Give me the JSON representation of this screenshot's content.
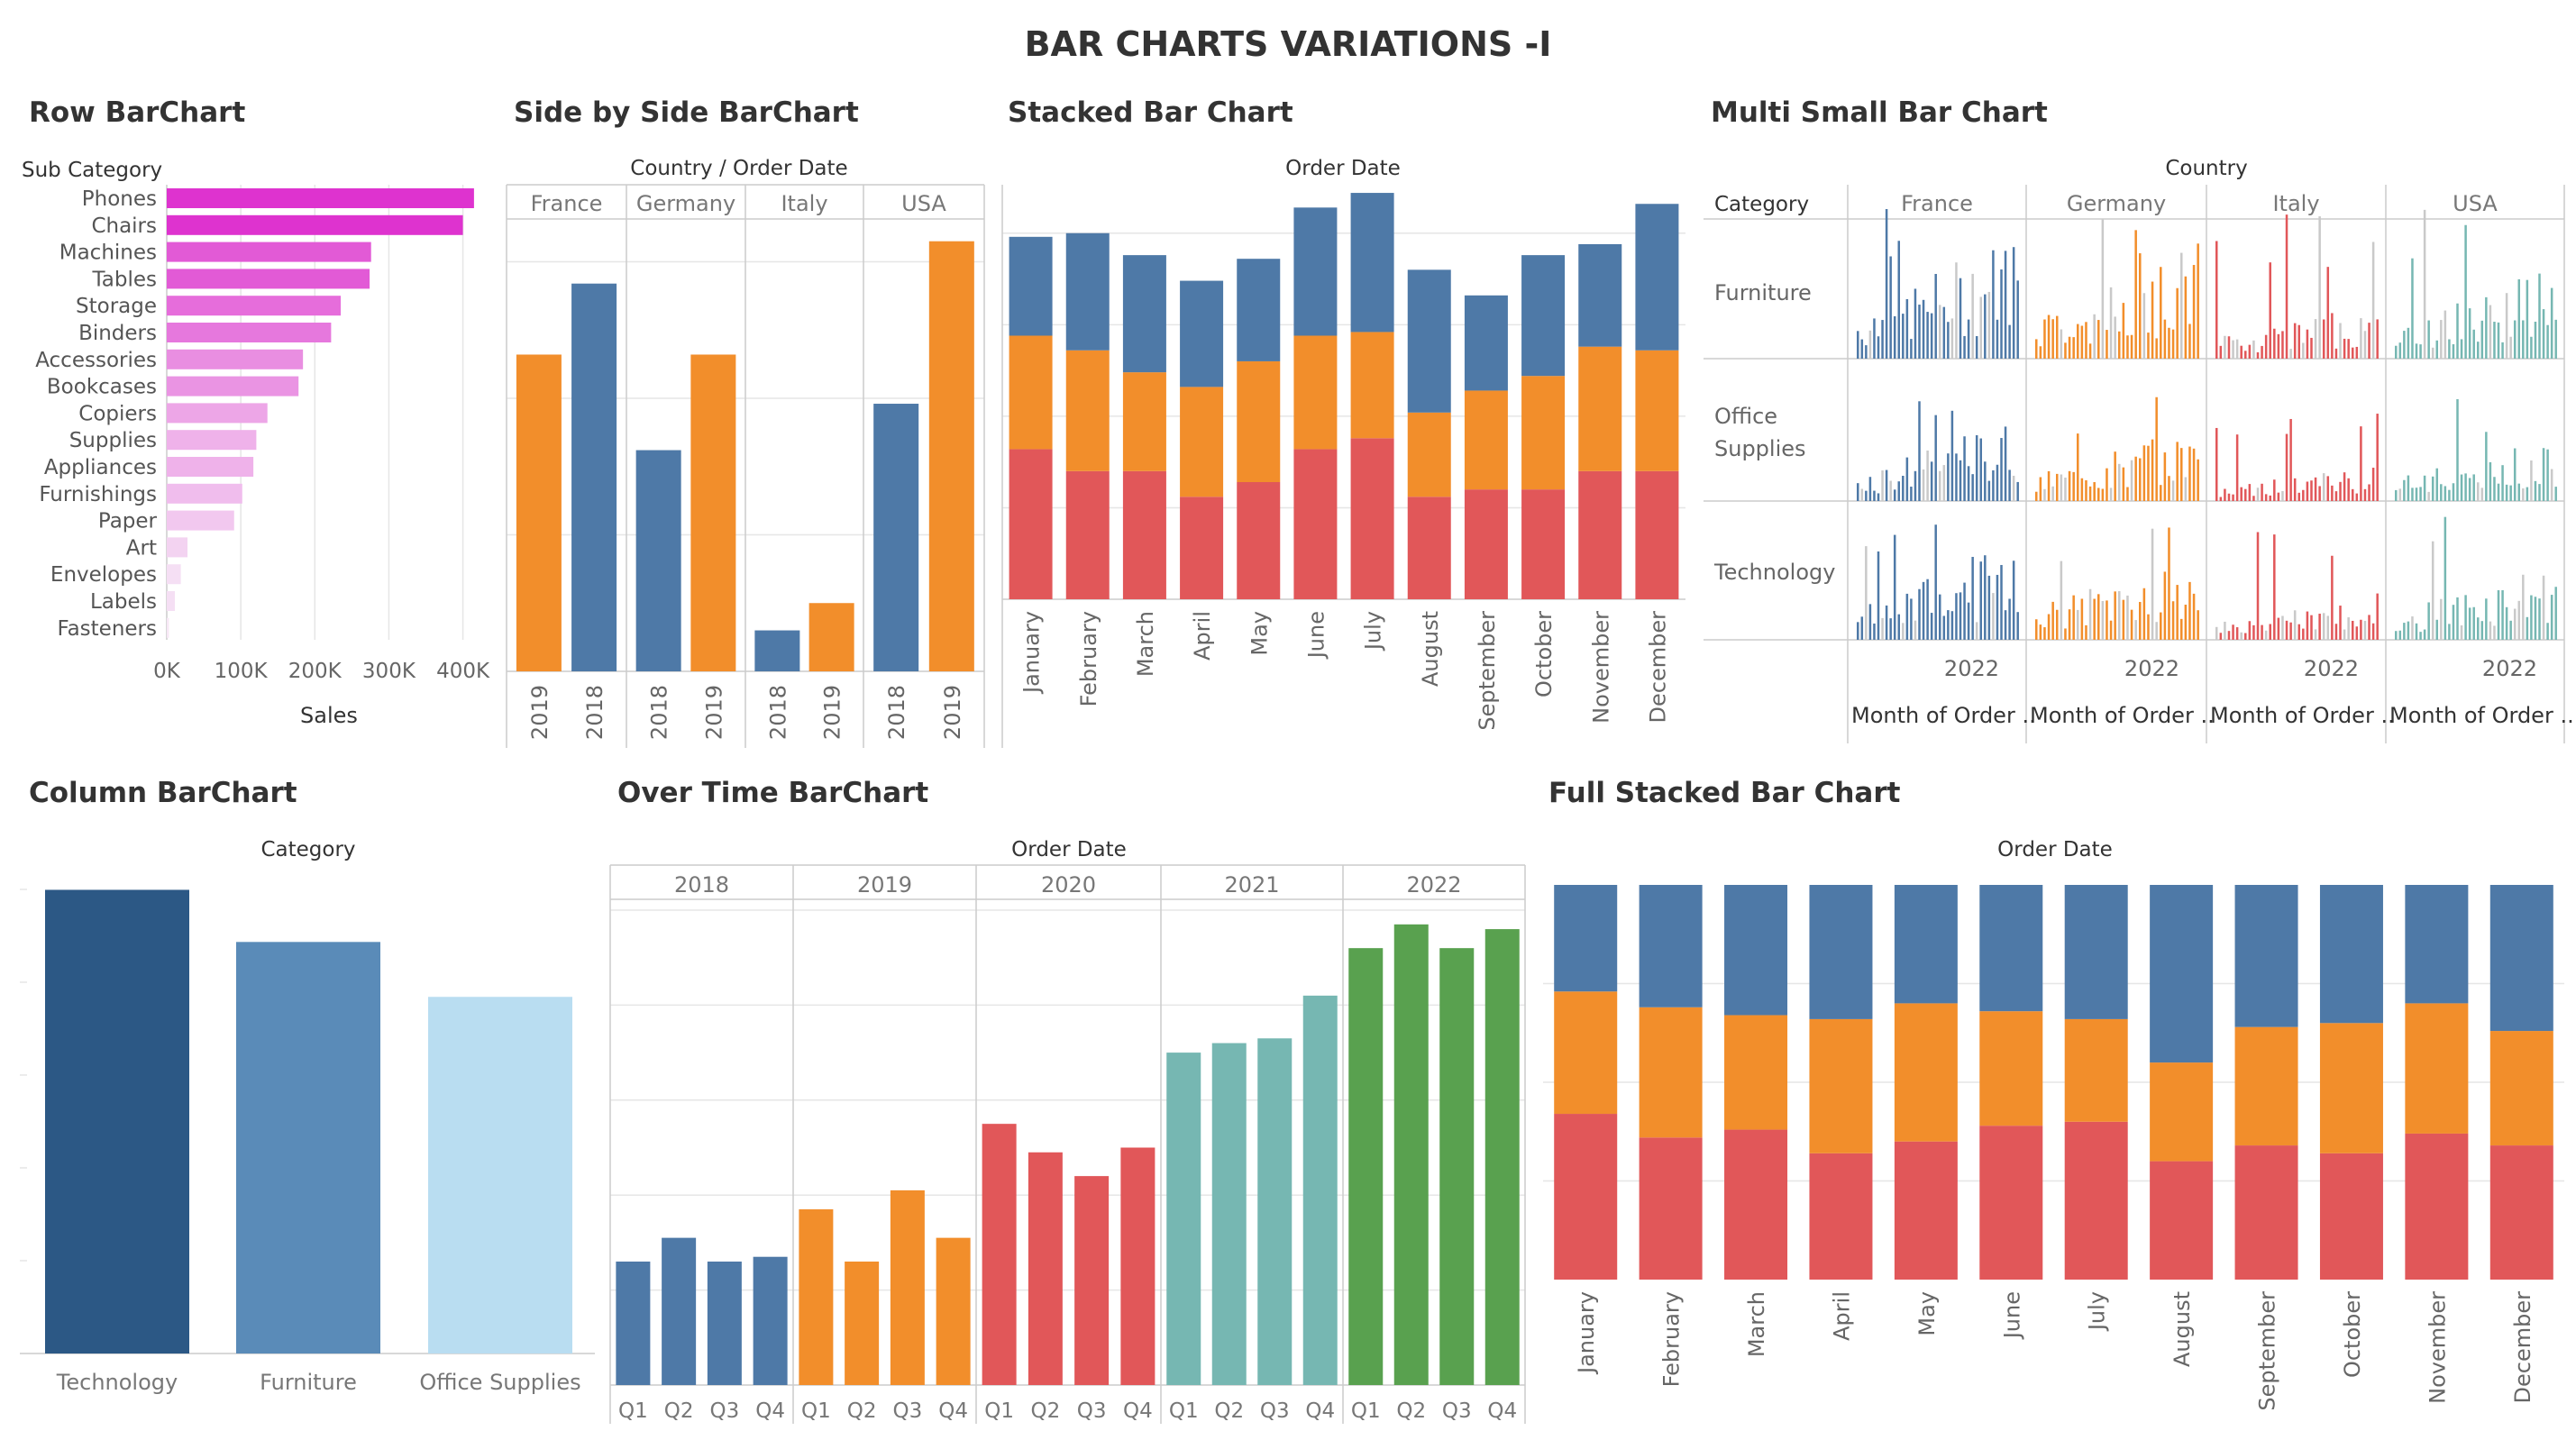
{
  "dashboard_title": "BAR CHARTS VARIATIONS -I",
  "colors": {
    "blue": "#4e79a7",
    "orange": "#f28e2b",
    "red": "#e15759",
    "teal": "#76b7b2",
    "green": "#59a14f",
    "dark_blue": "#2c5885",
    "mid_blue": "#5a8bb8",
    "light_blue": "#b9ddf1",
    "magenta": "#de33cf",
    "grid": "#e6e6e6",
    "divider": "#cccccc"
  },
  "chart_data": [
    {
      "id": "row",
      "type": "bar",
      "orientation": "horizontal",
      "title": "Row BarChart",
      "row_header": "Sub Category",
      "xlabel": "Sales",
      "x_ticks": [
        "0K",
        "100K",
        "200K",
        "300K",
        "400K"
      ],
      "xlim": [
        0,
        420000
      ],
      "categories": [
        "Phones",
        "Chairs",
        "Machines",
        "Tables",
        "Storage",
        "Binders",
        "Accessories",
        "Bookcases",
        "Copiers",
        "Supplies",
        "Appliances",
        "Furnishings",
        "Paper",
        "Art",
        "Envelopes",
        "Labels",
        "Fasteners"
      ],
      "values": [
        415000,
        400000,
        276000,
        274000,
        235000,
        222000,
        184000,
        178000,
        136000,
        121000,
        117000,
        102000,
        91000,
        28000,
        19000,
        11000,
        3000
      ]
    },
    {
      "id": "side",
      "type": "bar",
      "title": "Side by Side BarChart",
      "header": "Country  /  Order Date",
      "groups": [
        {
          "name": "France",
          "years": [
            "2019",
            "2018"
          ],
          "values": [
            232000,
            284000
          ]
        },
        {
          "name": "Germany",
          "years": [
            "2018",
            "2019"
          ],
          "values": [
            162000,
            232000
          ]
        },
        {
          "name": "Italy",
          "years": [
            "2018",
            "2019"
          ],
          "values": [
            30000,
            50000
          ]
        },
        {
          "name": "USA",
          "years": [
            "2018",
            "2019"
          ],
          "values": [
            196000,
            315000
          ]
        }
      ],
      "ylim": [
        0,
        330000
      ],
      "year_colors": {
        "2018": "#4e79a7",
        "2019": "#f28e2b"
      }
    },
    {
      "id": "stacked",
      "type": "bar",
      "stacked": true,
      "title": "Stacked Bar Chart",
      "header": "Order Date",
      "categories": [
        "January",
        "February",
        "March",
        "April",
        "May",
        "June",
        "July",
        "August",
        "September",
        "October",
        "November",
        "December"
      ],
      "series": [
        {
          "values": [
            41,
            35,
            35,
            28,
            32,
            41,
            44,
            28,
            30,
            30,
            35,
            35
          ]
        },
        {
          "values": [
            31,
            33,
            27,
            30,
            33,
            31,
            29,
            23,
            27,
            31,
            34,
            33
          ]
        },
        {
          "values": [
            27,
            32,
            32,
            29,
            28,
            35,
            38,
            39,
            26,
            33,
            28,
            40
          ]
        }
      ],
      "ylim": [
        0,
        112
      ]
    },
    {
      "id": "multi",
      "type": "bar",
      "title": "Multi Small Bar Chart",
      "header": "Country",
      "row_header": "Category",
      "countries": [
        "France",
        "Germany",
        "Italy",
        "USA"
      ],
      "rows": [
        "Furniture",
        "Office Supplies",
        "Technology"
      ],
      "year_label": "2022",
      "axis_label": "Month of Order ..",
      "country_colors": [
        "#4e79a7",
        "#f28e2b",
        "#e15759",
        "#76b7b2"
      ]
    },
    {
      "id": "column",
      "type": "bar",
      "title": "Column BarChart",
      "header": "Category",
      "categories": [
        "Technology",
        "Furniture",
        "Office Supplies"
      ],
      "values": [
        836000,
        742000,
        643000
      ],
      "ylim": [
        0,
        840000
      ],
      "bar_colors": [
        "#2c5885",
        "#5a8bb8",
        "#b9ddf1"
      ]
    },
    {
      "id": "overtime",
      "type": "bar",
      "title": "Over Time BarChart",
      "header": "Order Date",
      "years": [
        "2018",
        "2019",
        "2020",
        "2021",
        "2022"
      ],
      "quarters": [
        "Q1",
        "Q2",
        "Q3",
        "Q4"
      ],
      "values": [
        [
          26,
          31,
          26,
          27
        ],
        [
          37,
          26,
          41,
          31
        ],
        [
          55,
          49,
          44,
          50
        ],
        [
          70,
          72,
          73,
          82
        ],
        [
          92,
          97,
          92,
          96
        ]
      ],
      "ylim": [
        0,
        100
      ],
      "year_colors": [
        "#4e79a7",
        "#f28e2b",
        "#e15759",
        "#76b7b2",
        "#59a14f"
      ]
    },
    {
      "id": "fullstacked",
      "type": "bar",
      "stacked": true,
      "normalized": true,
      "title": "Full Stacked Bar Chart",
      "header": "Order Date",
      "categories": [
        "January",
        "February",
        "March",
        "April",
        "May",
        "June",
        "July",
        "August",
        "September",
        "October",
        "November",
        "December"
      ],
      "series": [
        {
          "values": [
            0.42,
            0.36,
            0.38,
            0.32,
            0.35,
            0.39,
            0.4,
            0.3,
            0.34,
            0.32,
            0.37,
            0.34
          ]
        },
        {
          "values": [
            0.31,
            0.33,
            0.29,
            0.34,
            0.35,
            0.29,
            0.26,
            0.25,
            0.3,
            0.33,
            0.33,
            0.29
          ]
        },
        {
          "values": [
            0.27,
            0.31,
            0.33,
            0.34,
            0.3,
            0.32,
            0.34,
            0.45,
            0.36,
            0.35,
            0.3,
            0.37
          ]
        }
      ]
    }
  ]
}
